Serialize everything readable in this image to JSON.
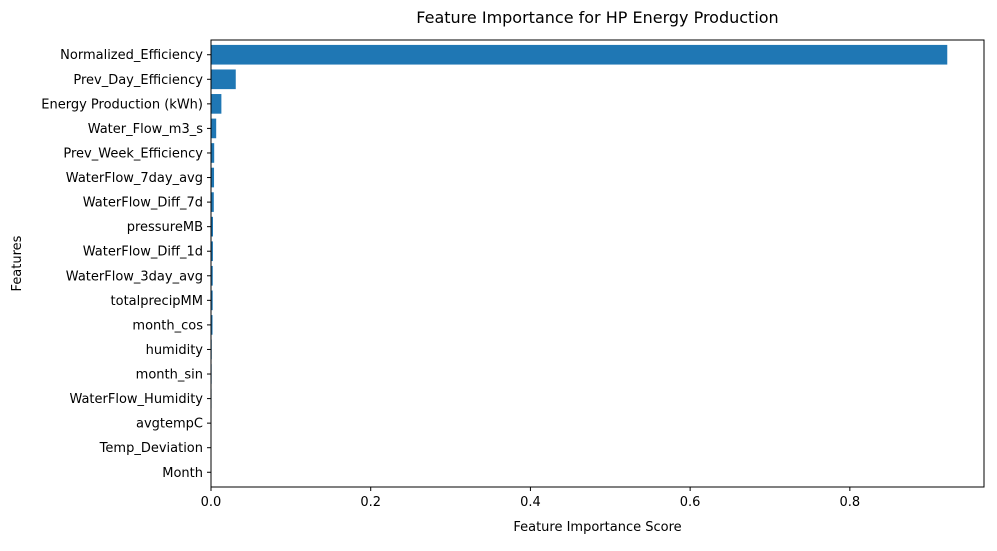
{
  "chart_data": {
    "type": "bar",
    "orientation": "horizontal",
    "title": "Feature Importance for HP Energy Production",
    "xlabel": "Feature Importance Score",
    "ylabel": "Features",
    "categories": [
      "Normalized_Efficiency",
      "Prev_Day_Efficiency",
      "Energy Production (kWh)",
      "Water_Flow_m3_s",
      "Prev_Week_Efficiency",
      "WaterFlow_7day_avg",
      "WaterFlow_Diff_7d",
      "pressureMB",
      "WaterFlow_Diff_1d",
      "WaterFlow_3day_avg",
      "totalprecipMM",
      "month_cos",
      "humidity",
      "month_sin",
      "WaterFlow_Humidity",
      "avgtempC",
      "Temp_Deviation",
      "Month"
    ],
    "values": [
      0.922,
      0.031,
      0.013,
      0.0065,
      0.004,
      0.0038,
      0.0035,
      0.0025,
      0.0024,
      0.0022,
      0.0021,
      0.0019,
      0.0009,
      0.0008,
      0.0007,
      0.0006,
      0.0005,
      0.0002
    ],
    "xlim": [
      0,
      0.968
    ],
    "xticks": [
      "0.0",
      "0.2",
      "0.4",
      "0.6",
      "0.8"
    ],
    "xtick_values": [
      0,
      0.2,
      0.4,
      0.6,
      0.8
    ],
    "grid": false,
    "bar_color": "#1f77b4"
  }
}
